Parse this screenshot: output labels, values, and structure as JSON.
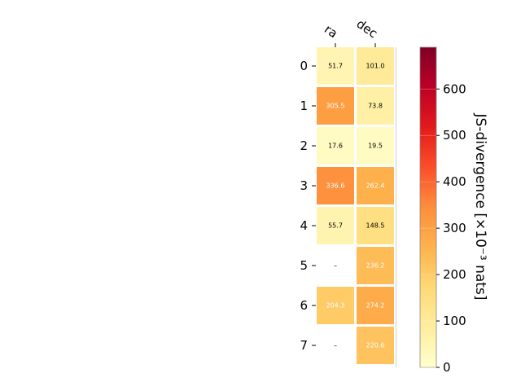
{
  "chart_data": {
    "type": "heatmap",
    "columns": [
      "ra",
      "dec"
    ],
    "rows": [
      "0",
      "1",
      "2",
      "3",
      "4",
      "5",
      "6",
      "7"
    ],
    "values": [
      [
        51.7,
        101.0
      ],
      [
        305.5,
        73.8
      ],
      [
        17.6,
        19.5
      ],
      [
        336.6,
        262.4
      ],
      [
        55.7,
        148.5
      ],
      [
        null,
        236.2
      ],
      [
        204.3,
        274.2
      ],
      [
        null,
        220.6
      ]
    ],
    "cell_labels": [
      [
        "51.7",
        "101.0"
      ],
      [
        "305.5",
        "73.8"
      ],
      [
        "17.6",
        "19.5"
      ],
      [
        "336.6",
        "262.4"
      ],
      [
        "55.7",
        "148.5"
      ],
      [
        "–",
        "236.2"
      ],
      [
        "204.3",
        "274.2"
      ],
      [
        "–",
        "220.6"
      ]
    ],
    "missing_label": "–",
    "colorbar": {
      "label": "JS-divergence [×10⁻³ nats]",
      "vmin": 0,
      "vmax": 690,
      "ticks": [
        0,
        100,
        200,
        300,
        400,
        500,
        600
      ],
      "colormap": "YlOrRd"
    }
  }
}
